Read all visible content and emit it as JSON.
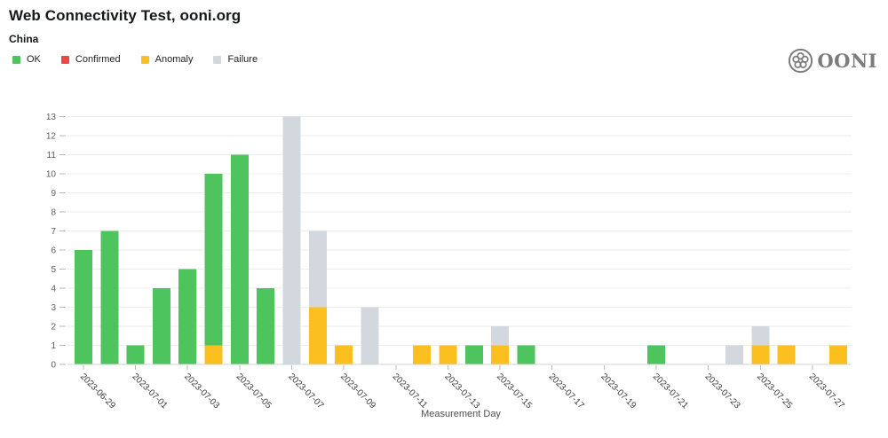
{
  "header": {
    "title": "Web Connectivity Test, ooni.org",
    "subtitle": "China",
    "logo_text": "OONI",
    "logo_icon": "ooni-flower-icon"
  },
  "legend": [
    {
      "label": "OK",
      "color": "#4ec45f"
    },
    {
      "label": "Confirmed",
      "color": "#ed4740"
    },
    {
      "label": "Anomaly",
      "color": "#fbbf1f"
    },
    {
      "label": "Failure",
      "color": "#d3d8de"
    }
  ],
  "chart_data": {
    "type": "bar",
    "stacked": true,
    "title": "Web Connectivity Test, ooni.org",
    "subtitle": "China",
    "xlabel": "Measurement Day",
    "ylabel": "",
    "ylim": [
      0,
      13
    ],
    "grid": "horizontal",
    "legend_position": "top-left",
    "y_ticks": [
      0,
      1,
      2,
      3,
      4,
      5,
      6,
      7,
      8,
      9,
      10,
      11,
      12,
      13
    ],
    "categories": [
      "2023-06-29",
      "2023-06-30",
      "2023-07-01",
      "2023-07-02",
      "2023-07-03",
      "2023-07-04",
      "2023-07-05",
      "2023-07-06",
      "2023-07-07",
      "2023-07-08",
      "2023-07-09",
      "2023-07-10",
      "2023-07-11",
      "2023-07-12",
      "2023-07-13",
      "2023-07-14",
      "2023-07-15",
      "2023-07-16",
      "2023-07-17",
      "2023-07-18",
      "2023-07-19",
      "2023-07-20",
      "2023-07-21",
      "2023-07-22",
      "2023-07-23",
      "2023-07-24",
      "2023-07-25",
      "2023-07-26",
      "2023-07-27",
      "2023-07-28"
    ],
    "x_tick_labels": [
      "2023-06-29",
      "2023-07-01",
      "2023-07-03",
      "2023-07-05",
      "2023-07-07",
      "2023-07-09",
      "2023-07-11",
      "2023-07-13",
      "2023-07-15",
      "2023-07-17",
      "2023-07-19",
      "2023-07-21",
      "2023-07-23",
      "2023-07-25",
      "2023-07-27"
    ],
    "stack_order_bottom_to_top": [
      "Anomaly",
      "Confirmed",
      "Failure",
      "OK"
    ],
    "series": [
      {
        "name": "OK",
        "color": "#4ec45f",
        "values": [
          6,
          7,
          1,
          4,
          5,
          9,
          11,
          4,
          0,
          0,
          0,
          0,
          0,
          0,
          0,
          1,
          0,
          1,
          0,
          0,
          0,
          0,
          1,
          0,
          0,
          0,
          0,
          0,
          0,
          0
        ]
      },
      {
        "name": "Confirmed",
        "color": "#ed4740",
        "values": [
          0,
          0,
          0,
          0,
          0,
          0,
          0,
          0,
          0,
          0,
          0,
          0,
          0,
          0,
          0,
          0,
          0,
          0,
          0,
          0,
          0,
          0,
          0,
          0,
          0,
          0,
          0,
          0,
          0,
          0
        ]
      },
      {
        "name": "Anomaly",
        "color": "#fbbf1f",
        "values": [
          0,
          0,
          0,
          0,
          0,
          1,
          0,
          0,
          0,
          3,
          1,
          0,
          0,
          1,
          1,
          0,
          1,
          0,
          0,
          0,
          0,
          0,
          0,
          0,
          0,
          0,
          1,
          1,
          0,
          1
        ]
      },
      {
        "name": "Failure",
        "color": "#d3d8de",
        "values": [
          0,
          0,
          0,
          0,
          0,
          0,
          0,
          0,
          13,
          4,
          0,
          3,
          0,
          0,
          0,
          0,
          1,
          0,
          0,
          0,
          0,
          0,
          0,
          0,
          0,
          1,
          1,
          0,
          0,
          0
        ]
      }
    ]
  }
}
